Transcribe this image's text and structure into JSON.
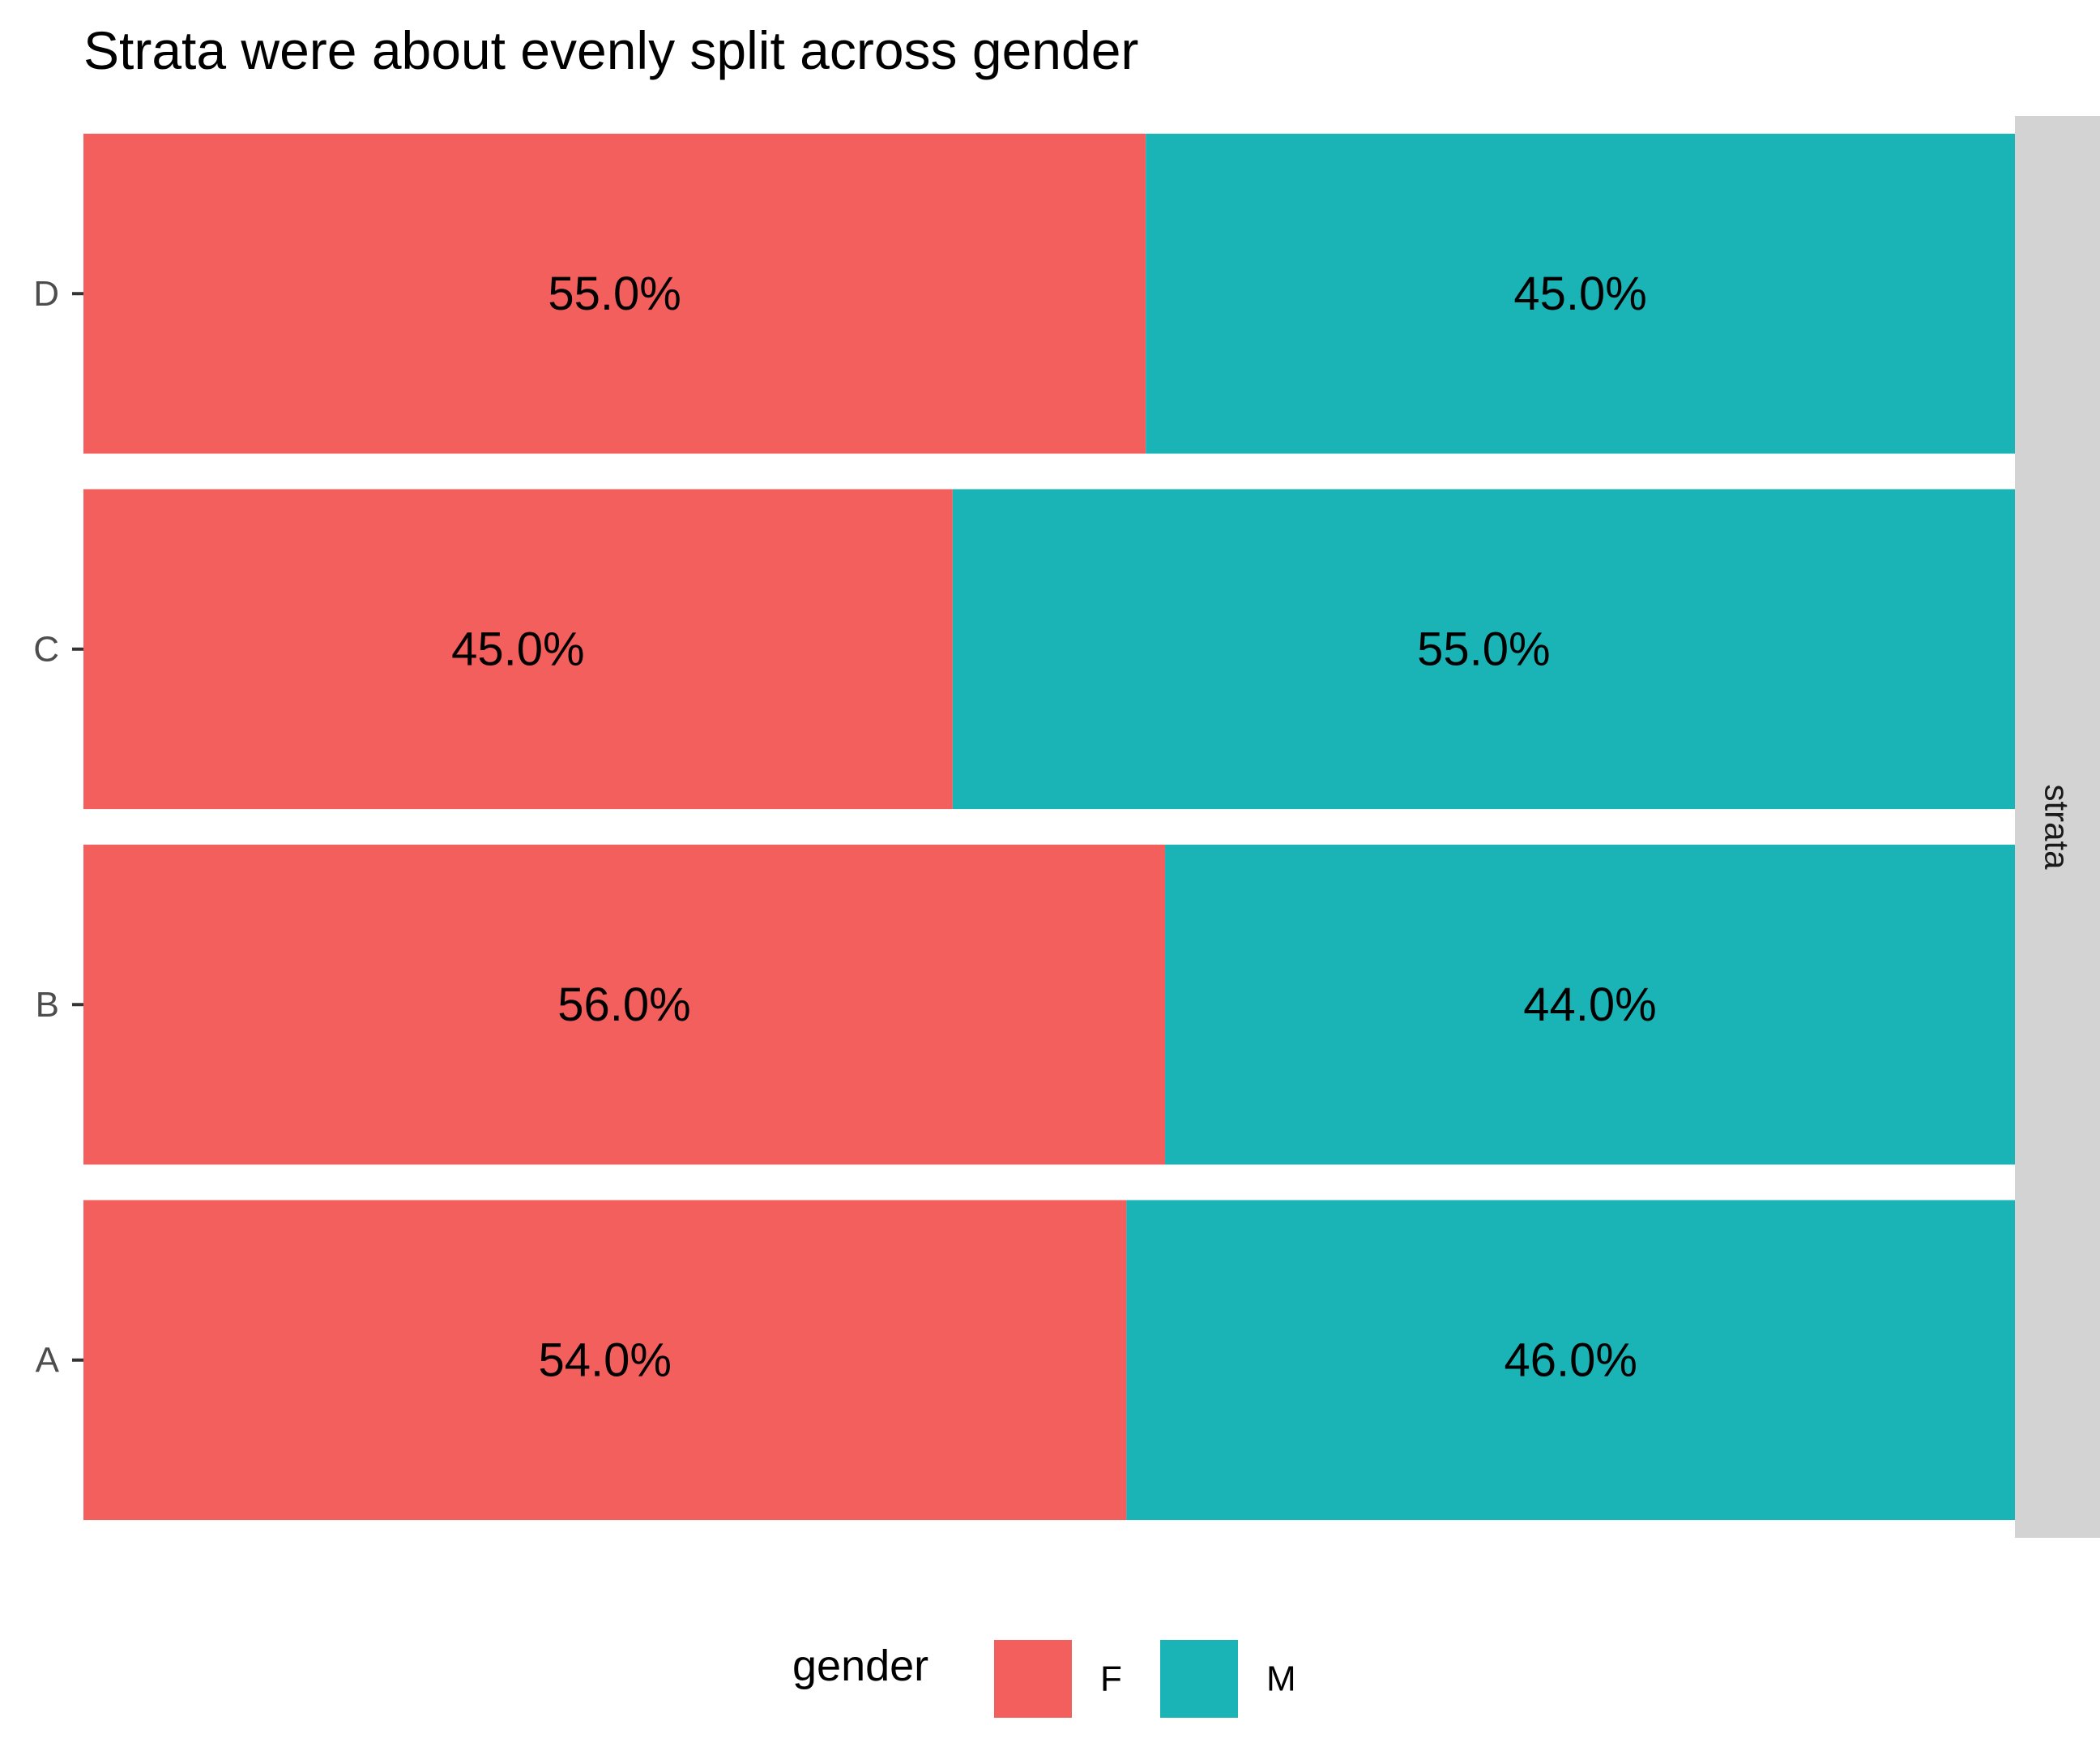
{
  "chart_data": {
    "type": "bar",
    "orientation": "horizontal",
    "stacked": "percent",
    "title": "Strata were about evenly split across gender",
    "xlabel": "",
    "ylabel": "",
    "facet_label": "strata",
    "categories": [
      "A",
      "B",
      "C",
      "D"
    ],
    "xlim": [
      0,
      1
    ],
    "series": [
      {
        "name": "F",
        "color": "#F25F5C",
        "values": [
          0.54,
          0.56,
          0.45,
          0.55
        ],
        "labels": [
          "54.0%",
          "56.0%",
          "45.0%",
          "55.0%"
        ]
      },
      {
        "name": "M",
        "color": "#1AB3B6",
        "values": [
          0.46,
          0.44,
          0.55,
          0.45
        ],
        "labels": [
          "46.0%",
          "44.0%",
          "55.0%",
          "45.0%"
        ]
      }
    ],
    "legend": {
      "title": "gender",
      "position": "bottom",
      "entries": [
        "F",
        "M"
      ]
    },
    "grid": false,
    "strip_color": "#D3D3D3"
  }
}
